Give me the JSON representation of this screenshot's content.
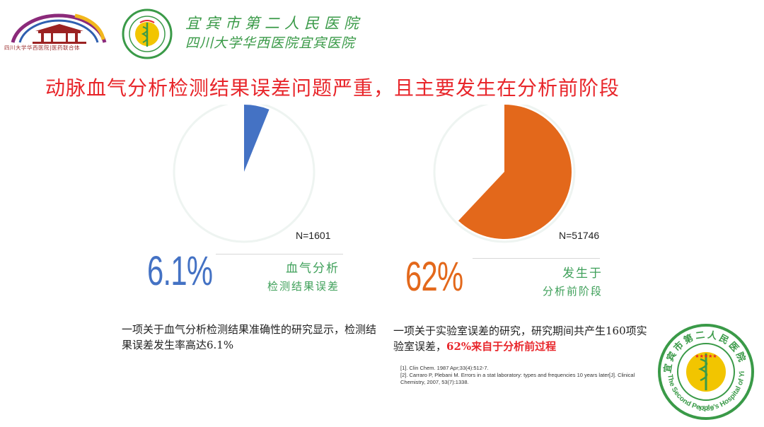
{
  "header": {
    "left_logo_caption": "四川大学华西医院|医药联合体",
    "hospital_name_line1": "宜宾市第二人民医院",
    "hospital_name_line2": "四川大学华西医院宜宾医院"
  },
  "slide": {
    "title": "动脉血气分析检测结果误差问题严重，且主要发生在分析前阶段"
  },
  "left_panel": {
    "n_label": "N=1601",
    "stat": "6.1%",
    "stat_label_line1": "血气分析",
    "stat_label_line2": "检测结果误差",
    "description": "一项关于血气分析检测结果准确性的研究显示，检测结果误差发生率高达6.1%"
  },
  "right_panel": {
    "n_label": "N=51746",
    "stat": "62%",
    "stat_label_line1": "发生于",
    "stat_label_line2": "分析前阶段",
    "description_prefix": "一项关于实验室误差的研究，研究期间共产生160项实验室误差，",
    "description_highlight": "62%来自于分析前过程"
  },
  "references": {
    "ref1": "[1]. Clin Chem. 1987 Apr;33(4):512-7.",
    "ref2": "[2]. Carraro P, Plebani M. Errors in a stat laboratory: types and frequencies 10 years later[J]. Clinical Chemistry, 2007, 53(7):1338."
  },
  "logo_br": {
    "top_text": "宜宾市第二人民医院",
    "bottom_text": "The Second People's Hospital of Yibin",
    "year": "1889"
  },
  "chart_data": [
    {
      "type": "pie",
      "slices": [
        {
          "label": "血气分析检测结果误差",
          "value": 6.1
        },
        {
          "label": "",
          "value": 93.9
        }
      ],
      "colors": [
        "#4472c4",
        "#ffffff"
      ]
    },
    {
      "type": "pie",
      "slices": [
        {
          "label": "发生于分析前阶段",
          "value": 62
        },
        {
          "label": "",
          "value": 38
        }
      ],
      "colors": [
        "#e3681b",
        "#ffffff"
      ]
    }
  ],
  "colors": {
    "title_red": "#e8262b",
    "logo_green": "#3a9a48",
    "label_green": "#3fa05a",
    "stat_blue": "#4472c4",
    "stat_orange": "#e3681b"
  }
}
